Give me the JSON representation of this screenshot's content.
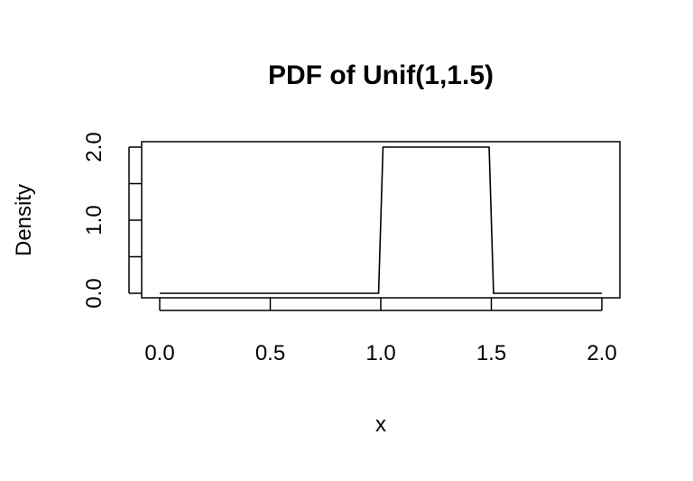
{
  "chart_data": {
    "type": "line",
    "title": "PDF of Unif(1,1.5)",
    "xlabel": "x",
    "ylabel": "Density",
    "xlim": [
      0,
      2
    ],
    "ylim": [
      0,
      2
    ],
    "grid": false,
    "legend": "none",
    "x_ticks": [
      0,
      0.5,
      1,
      1.5,
      2
    ],
    "x_tick_labels": [
      "0.0",
      "0.5",
      "1.0",
      "1.5",
      "2.0"
    ],
    "y_ticks": [
      0,
      0.5,
      1,
      1.5,
      2
    ],
    "y_tick_labels": [
      "0.0",
      "",
      "1.0",
      "",
      "2.0"
    ],
    "series": [
      {
        "x": [
          0,
          0.99,
          1.01,
          1.49,
          1.51,
          2
        ],
        "y": [
          0,
          0,
          2,
          2,
          0,
          0
        ]
      }
    ],
    "line_color": "#000000"
  }
}
